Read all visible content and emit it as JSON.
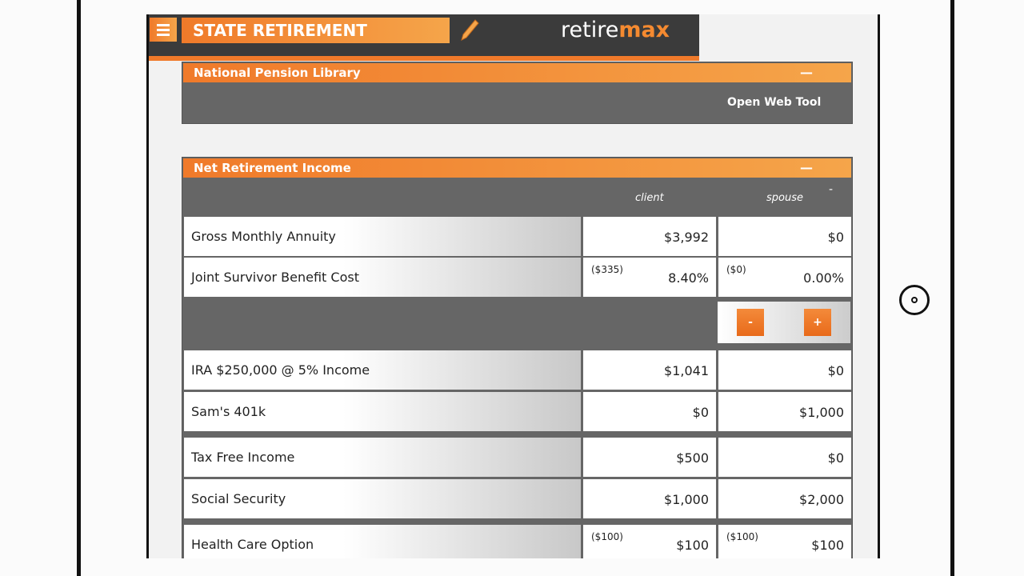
{
  "header": {
    "title": "STATE RETIREMENT",
    "brand_light": "retire",
    "brand_bold": "max"
  },
  "library": {
    "title": "National Pension Library",
    "collapse": "—",
    "link": "Open Web Tool"
  },
  "income": {
    "title": "Net Retirement Income",
    "collapse": "—",
    "corner": "-",
    "columns": [
      "client",
      "spouse"
    ],
    "stepper": {
      "minus": "-",
      "plus": "+"
    },
    "rows": [
      {
        "label": "Gross Monthly Annuity",
        "client": "$3,992",
        "spouse": "$0"
      },
      {
        "label": "Joint Survivor Benefit Cost",
        "client_note": "($335)",
        "client": "8.40%",
        "spouse_note": "($0)",
        "spouse": "0.00%"
      },
      {
        "label": "IRA $250,000 @ 5% Income",
        "client": "$1,041",
        "spouse": "$0"
      },
      {
        "label": "Sam's 401k",
        "client": "$0",
        "spouse": "$1,000"
      },
      {
        "label": "Tax Free Income",
        "client": "$500",
        "spouse": "$0"
      },
      {
        "label": "Social Security",
        "client": "$1,000",
        "spouse": "$2,000"
      },
      {
        "label": "Health Care Option",
        "client_note": "($100)",
        "client": "$100",
        "spouse_note": "($100)",
        "spouse": "$100"
      }
    ]
  }
}
